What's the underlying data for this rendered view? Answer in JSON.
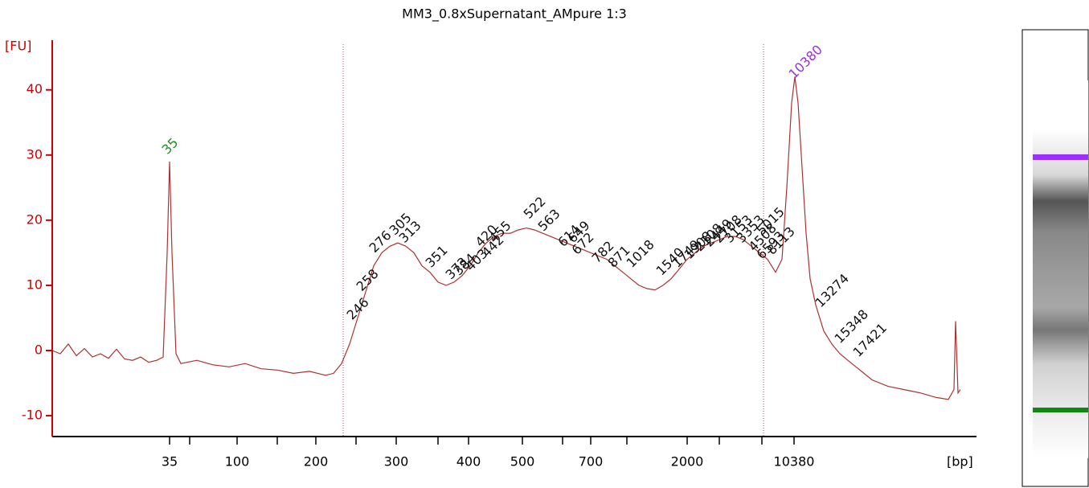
{
  "chart_data": {
    "type": "line",
    "title": "MM3_0.8xSupernatant_AMpure 1:3",
    "y_label": "[FU]",
    "x_label": "[bp]",
    "xlim": [
      0,
      115
    ],
    "ylim": [
      -13.2,
      47
    ],
    "yticks": [
      -10,
      0,
      10,
      20,
      30,
      40
    ],
    "xticks": [
      {
        "value": 14.6,
        "label": "35"
      },
      {
        "value": 23,
        "label": "100"
      },
      {
        "value": 32.8,
        "label": "200"
      },
      {
        "value": 42.8,
        "label": "300"
      },
      {
        "value": 51.8,
        "label": "400"
      },
      {
        "value": 58.5,
        "label": "500"
      },
      {
        "value": 67,
        "label": "700"
      },
      {
        "value": 79,
        "label": "2000"
      },
      {
        "value": 92.3,
        "label": "10380"
      }
    ],
    "xminor_ticks": [
      17.1,
      28,
      37.8,
      48,
      63.5,
      71.5,
      83,
      88.3
    ],
    "region": [
      36.2,
      88.5
    ],
    "axis_color": "#cc0000",
    "x": [
      0,
      1,
      2,
      3,
      4,
      5,
      6,
      7,
      8,
      9,
      10,
      11,
      12,
      13,
      13.8,
      14.3,
      14.6,
      14.9,
      15.4,
      16,
      18,
      20,
      22,
      24,
      26,
      28,
      30,
      32,
      34,
      35,
      36,
      37,
      38,
      39,
      40,
      41,
      42,
      43,
      44,
      45,
      46,
      47,
      48,
      49,
      50,
      51,
      52,
      53,
      54,
      55,
      56,
      57,
      58,
      59,
      60,
      61,
      62,
      63,
      64,
      65,
      66,
      67,
      68,
      69,
      70,
      71,
      72,
      73,
      74,
      75,
      76,
      77,
      78,
      79,
      80,
      81,
      82,
      83,
      84,
      85,
      86,
      87,
      88,
      89,
      90,
      90.8,
      91.4,
      92,
      92.4,
      92.8,
      93.3,
      93.8,
      94.3,
      95,
      96,
      97,
      98,
      99,
      100,
      101,
      102,
      104,
      106,
      108,
      110,
      111.5,
      112.2,
      112.4,
      112.7,
      113
    ],
    "series": [
      {
        "name": "MM3_0.8xSupernatant_AMpure 1:3",
        "color": "#b03030",
        "values": [
          0,
          -0.5,
          1,
          -0.8,
          0.3,
          -1,
          -0.5,
          -1.2,
          0.2,
          -1.3,
          -1.5,
          -1,
          -1.8,
          -1.5,
          -1,
          15,
          29,
          15,
          -0.5,
          -2,
          -1.5,
          -2.2,
          -2.5,
          -2,
          -2.8,
          -3,
          -3.5,
          -3.2,
          -3.8,
          -3.5,
          -2,
          1,
          5,
          9,
          13,
          15,
          16,
          16.5,
          16,
          15,
          13,
          12,
          10.5,
          10,
          10.5,
          11.5,
          13,
          15,
          16.5,
          17.5,
          18,
          18,
          18.5,
          18.8,
          18.5,
          18,
          17.5,
          17,
          16.5,
          16,
          15.5,
          15,
          14.5,
          14,
          13,
          12,
          11,
          10,
          9.5,
          9.3,
          10,
          11,
          12.5,
          14,
          15,
          16,
          16.5,
          17,
          17.5,
          17.5,
          17,
          16,
          15,
          14,
          12,
          14,
          25,
          38,
          42,
          38,
          28,
          18,
          11,
          7,
          3,
          1,
          -0.5,
          -1.5,
          -2.5,
          -3.5,
          -4.5,
          -5.5,
          -6,
          -6.5,
          -7.2,
          -7.5,
          -6,
          4.5,
          -6.5,
          -6
        ]
      }
    ],
    "annotations": [
      {
        "text": "35",
        "x": 14,
        "y": 30.4,
        "color": "#228b22"
      },
      {
        "text": "246",
        "x": 37,
        "y": 5
      },
      {
        "text": "258",
        "x": 38.2,
        "y": 9.4
      },
      {
        "text": "276",
        "x": 39.8,
        "y": 15.3
      },
      {
        "text": "305",
        "x": 42.3,
        "y": 18
      },
      {
        "text": "313",
        "x": 43.5,
        "y": 16.8
      },
      {
        "text": "351",
        "x": 46.8,
        "y": 13
      },
      {
        "text": "373",
        "x": 49.3,
        "y": 11.2
      },
      {
        "text": "384",
        "x": 50.3,
        "y": 11.8
      },
      {
        "text": "403",
        "x": 51.8,
        "y": 12.5
      },
      {
        "text": "420",
        "x": 53,
        "y": 16.2
      },
      {
        "text": "442",
        "x": 53.8,
        "y": 14.6
      },
      {
        "text": "455",
        "x": 54.7,
        "y": 16.8
      },
      {
        "text": "522",
        "x": 59,
        "y": 20.5
      },
      {
        "text": "563",
        "x": 60.8,
        "y": 18.6
      },
      {
        "text": "614",
        "x": 63.3,
        "y": 16.2
      },
      {
        "text": "649",
        "x": 64.5,
        "y": 16.8
      },
      {
        "text": "672",
        "x": 65,
        "y": 15
      },
      {
        "text": "782",
        "x": 67.5,
        "y": 13.7
      },
      {
        "text": "871",
        "x": 69.5,
        "y": 13
      },
      {
        "text": "1018",
        "x": 71.8,
        "y": 13
      },
      {
        "text": "1540",
        "x": 75.5,
        "y": 11.8
      },
      {
        "text": "1749",
        "x": 77.5,
        "y": 13
      },
      {
        "text": "1908",
        "x": 79,
        "y": 14.3
      },
      {
        "text": "2108",
        "x": 80.3,
        "y": 15.5
      },
      {
        "text": "2449",
        "x": 81.5,
        "y": 16.2
      },
      {
        "text": "2708",
        "x": 82.7,
        "y": 16.8
      },
      {
        "text": "3153",
        "x": 84,
        "y": 16.8
      },
      {
        "text": "3353",
        "x": 85.5,
        "y": 16.8
      },
      {
        "text": "4508",
        "x": 87,
        "y": 15.5
      },
      {
        "text": "5015",
        "x": 88,
        "y": 18
      },
      {
        "text": "6593",
        "x": 88,
        "y": 14.3
      },
      {
        "text": "8113",
        "x": 89.3,
        "y": 15
      },
      {
        "text": "10380",
        "x": 92,
        "y": 42,
        "color": "#9b30d9"
      },
      {
        "text": "13274",
        "x": 95.3,
        "y": 6.9
      },
      {
        "text": "15348",
        "x": 97.7,
        "y": 1.4
      },
      {
        "text": "17421",
        "x": 100,
        "y": -0.7
      }
    ]
  }
}
